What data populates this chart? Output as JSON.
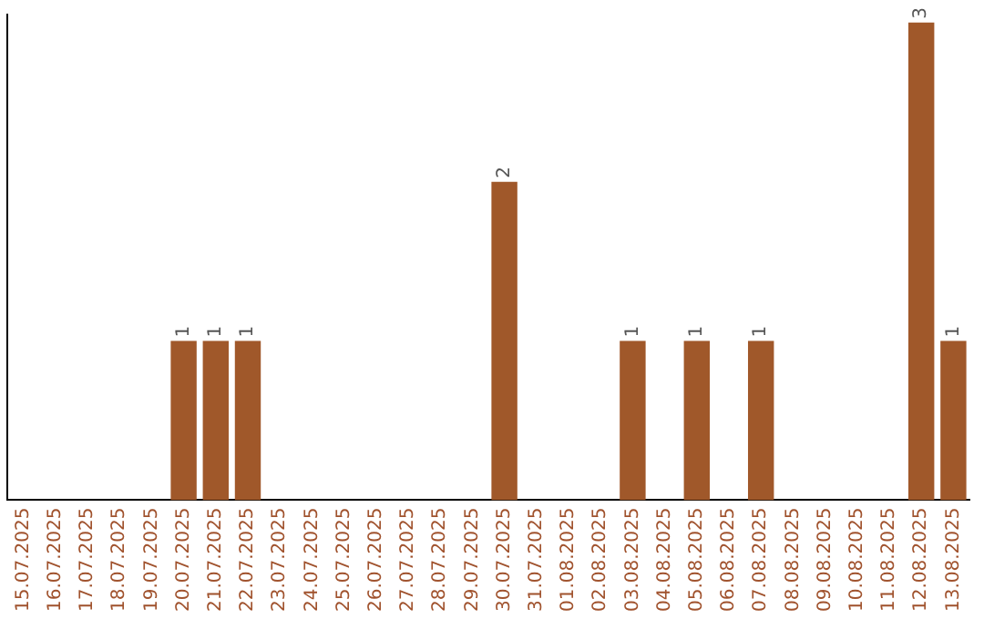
{
  "chart_data": {
    "type": "bar",
    "categories": [
      "15.07.2025",
      "16.07.2025",
      "17.07.2025",
      "18.07.2025",
      "19.07.2025",
      "20.07.2025",
      "21.07.2025",
      "22.07.2025",
      "23.07.2025",
      "24.07.2025",
      "25.07.2025",
      "26.07.2025",
      "27.07.2025",
      "28.07.2025",
      "29.07.2025",
      "30.07.2025",
      "31.07.2025",
      "01.08.2025",
      "02.08.2025",
      "03.08.2025",
      "04.08.2025",
      "05.08.2025",
      "06.08.2025",
      "07.08.2025",
      "08.08.2025",
      "09.08.2025",
      "10.08.2025",
      "11.08.2025",
      "12.08.2025",
      "13.08.2025"
    ],
    "values": [
      0,
      0,
      0,
      0,
      0,
      1,
      1,
      1,
      0,
      0,
      0,
      0,
      0,
      0,
      0,
      2,
      0,
      0,
      0,
      1,
      0,
      1,
      0,
      1,
      0,
      0,
      0,
      0,
      3,
      1
    ],
    "value_labels": [
      null,
      null,
      null,
      null,
      null,
      "1",
      "1",
      "1",
      null,
      null,
      null,
      null,
      null,
      null,
      null,
      "2",
      null,
      null,
      null,
      "1",
      null,
      "1",
      null,
      "1",
      null,
      null,
      null,
      null,
      "3",
      "1"
    ],
    "color": "#a0582a",
    "ylim": [
      0,
      3.05
    ],
    "tick_labels": "x",
    "grid": false,
    "legend": false
  }
}
